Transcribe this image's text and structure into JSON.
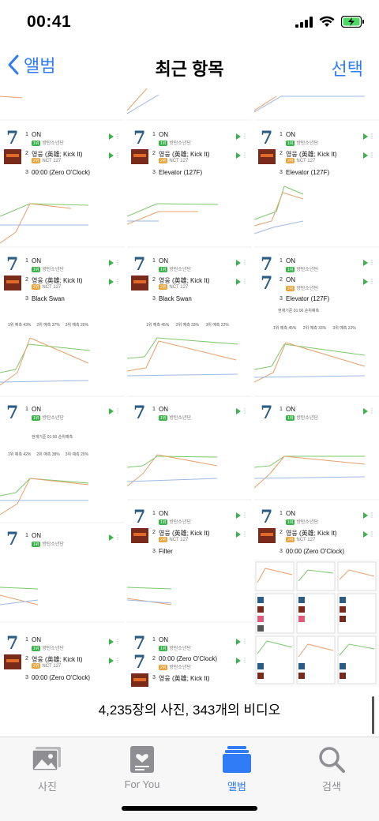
{
  "status": {
    "time": "00:41"
  },
  "nav": {
    "back_label": "앨범",
    "title": "최근 항목",
    "select_label": "선택"
  },
  "songs": {
    "on": "ON",
    "bts": "방탄소년단",
    "kickit": "영웅 (英雄; Kick It)",
    "nct": "NCT 127",
    "zero": "00:00 (Zero O'Clock)",
    "elevator": "Elevator (127F)",
    "blackswan": "Black Swan",
    "filter": "Filter",
    "n1": "1",
    "n2": "2",
    "n3": "3"
  },
  "chart_labels": {
    "rank1_43": "1위 예측 43%",
    "rank2_37": "2위 예측 37%",
    "rank3_20": "3위 예측 20%",
    "rank1_45": "1위 예측 45%",
    "rank2_33": "2위 예측 33%",
    "rank3_22": "3위 예측 22%",
    "rank1_42": "1위 예측 42%",
    "rank2_38": "2위 예측 38%",
    "basis": "현재기준 01:00 순위예측"
  },
  "footer": {
    "count": "4,235장의 사진, 343개의 비디오"
  },
  "tabs": [
    {
      "label": "사진",
      "icon": "photos-icon"
    },
    {
      "label": "For You",
      "icon": "for-you-icon"
    },
    {
      "label": "앨범",
      "icon": "albums-icon"
    },
    {
      "label": "검색",
      "icon": "search-icon"
    }
  ],
  "colors": {
    "accent": "#2f7cf6",
    "green_line": "#7ac96b",
    "orange_line": "#e8a06a",
    "blue_line": "#9db8e3"
  }
}
